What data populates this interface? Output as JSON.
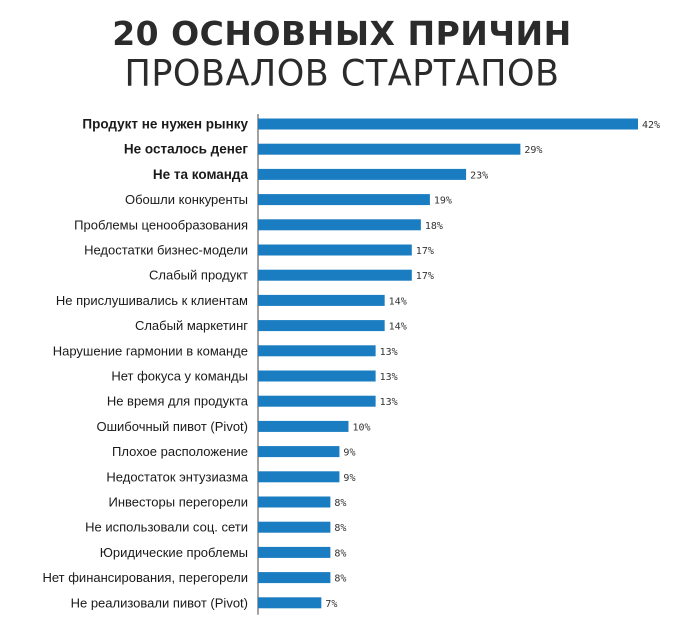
{
  "header": {
    "title_line1": "20 ОСНОВНЫХ ПРИЧИН",
    "title_line2": "ПРОВАЛОВ СТАРТАПОВ"
  },
  "colors": {
    "bar": "#1a7cc1",
    "axis": "#444444",
    "text": "#1a1a1a"
  },
  "chart_data": {
    "type": "bar",
    "orientation": "horizontal",
    "title": "20 ОСНОВНЫХ ПРИЧИН ПРОВАЛОВ СТАРТАПОВ",
    "xlabel": "",
    "ylabel": "",
    "xlim": [
      0,
      42
    ],
    "grid": false,
    "unit": "%",
    "highlighted_top": 3,
    "categories": [
      "Продукт не нужен рынку",
      "Не осталось денег",
      "Не та команда",
      "Обошли конкуренты",
      "Проблемы ценообразования",
      "Недостатки бизнес-модели",
      "Слабый продукт",
      "Не прислушивались к клиентам",
      "Слабый маркетинг",
      "Нарушение гармонии в команде",
      "Нет фокуса у команды",
      "Не время для продукта",
      "Ошибочный пивот (Pivot)",
      "Плохое расположение",
      "Недостаток энтузиазма",
      "Инвесторы перегорели",
      "Не использовали соц. сети",
      "Юридические проблемы",
      "Нет финансирования, перегорели",
      "Не реализовали пивот (Pivot)"
    ],
    "values": [
      42,
      29,
      23,
      19,
      18,
      17,
      17,
      14,
      14,
      13,
      13,
      13,
      10,
      9,
      9,
      8,
      8,
      8,
      8,
      7
    ],
    "value_labels": [
      "42%",
      "29%",
      "23%",
      "19%",
      "18%",
      "17%",
      "17%",
      "14%",
      "14%",
      "13%",
      "13%",
      "13%",
      "10%",
      "9%",
      "9%",
      "8%",
      "8%",
      "8%",
      "8%",
      "7%"
    ]
  }
}
